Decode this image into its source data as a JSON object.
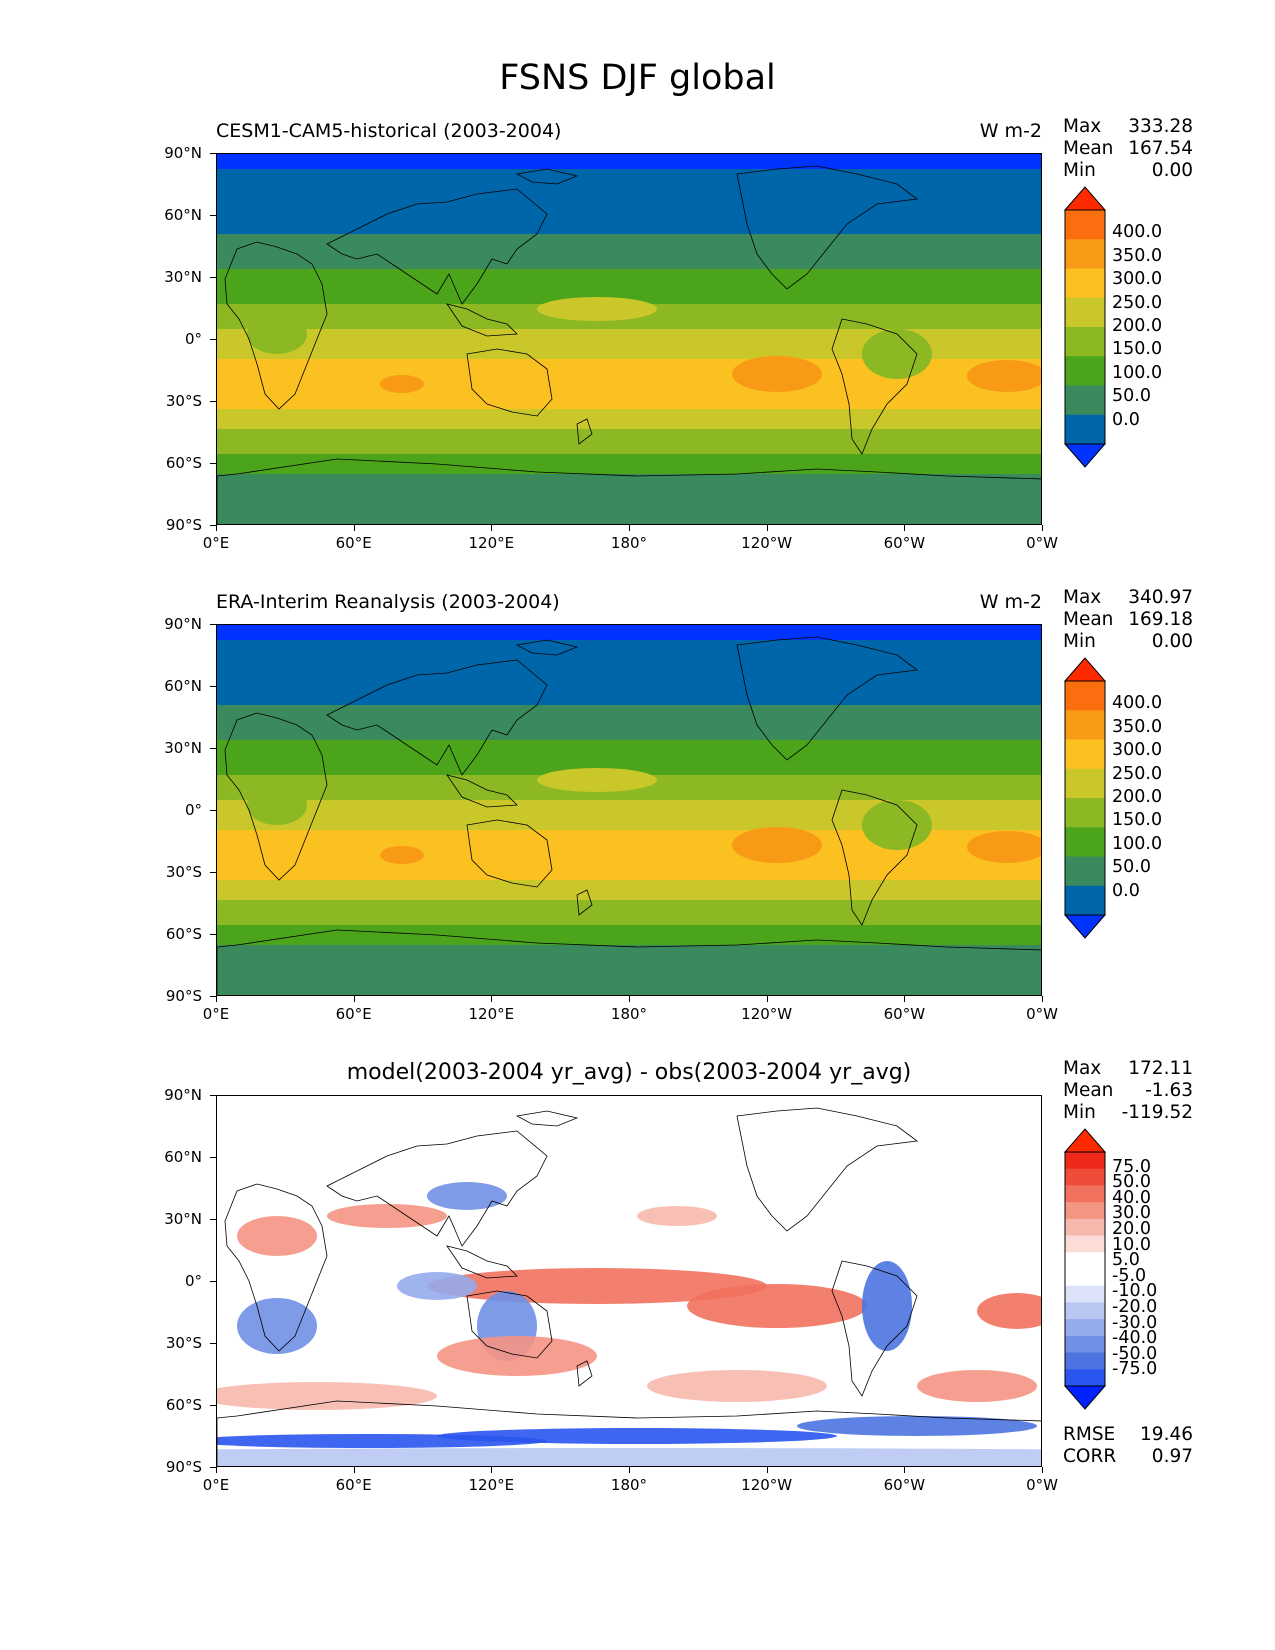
{
  "title": "FSNS DJF global",
  "axes": {
    "y_ticks": [
      "90°N",
      "60°N",
      "30°N",
      "0°",
      "30°S",
      "60°S",
      "90°S"
    ],
    "x_ticks": [
      "0°E",
      "60°E",
      "120°E",
      "180°",
      "120°W",
      "60°W",
      "0°W"
    ]
  },
  "panels": [
    {
      "left_title": "CESM1-CAM5-historical (2003-2004)",
      "units": "W m-2",
      "stats": [
        {
          "label": "Max",
          "value": "333.28"
        },
        {
          "label": "Mean",
          "value": "167.54"
        },
        {
          "label": "Min",
          "value": "0.00"
        }
      ],
      "colorbar_labels": [
        "400.0",
        "350.0",
        "300.0",
        "250.0",
        "200.0",
        "150.0",
        "100.0",
        "50.0",
        "0.0"
      ]
    },
    {
      "left_title": "ERA-Interim Reanalysis (2003-2004)",
      "units": "W m-2",
      "stats": [
        {
          "label": "Max",
          "value": "340.97"
        },
        {
          "label": "Mean",
          "value": "169.18"
        },
        {
          "label": "Min",
          "value": "0.00"
        }
      ],
      "colorbar_labels": [
        "400.0",
        "350.0",
        "300.0",
        "250.0",
        "200.0",
        "150.0",
        "100.0",
        "50.0",
        "0.0"
      ]
    },
    {
      "center_title": "model(2003-2004 yr_avg) - obs(2003-2004 yr_avg)",
      "stats": [
        {
          "label": "Max",
          "value": "172.11"
        },
        {
          "label": "Mean",
          "value": "-1.63"
        },
        {
          "label": "Min",
          "value": "-119.52"
        }
      ],
      "colorbar_labels": [
        "75.0",
        "50.0",
        "40.0",
        "30.0",
        "20.0",
        "10.0",
        "5.0",
        "-5.0",
        "-10.0",
        "-20.0",
        "-30.0",
        "-40.0",
        "-50.0",
        "-75.0"
      ],
      "bottom_stats": [
        {
          "label": "RMSE",
          "value": "19.46"
        },
        {
          "label": "CORR",
          "value": "0.97"
        }
      ]
    }
  ],
  "colors": {
    "abs_scale": [
      "#0033ff",
      "#0066aa",
      "#3a8a5e",
      "#4ba41a",
      "#8cb823",
      "#c9c72a",
      "#fbc120",
      "#f99a16",
      "#fb6e10",
      "#ff2a00"
    ],
    "diff_scale": [
      "#0022ff",
      "#2a55ee",
      "#4d74e0",
      "#6f90e4",
      "#95abec",
      "#b8c6f2",
      "#dce3f8",
      "#ffffff",
      "#ffffff",
      "#fbdcd6",
      "#f7b9ad",
      "#f59584",
      "#f2715e",
      "#ef4c3a",
      "#ee2a1a",
      "#ff2a00"
    ]
  }
}
